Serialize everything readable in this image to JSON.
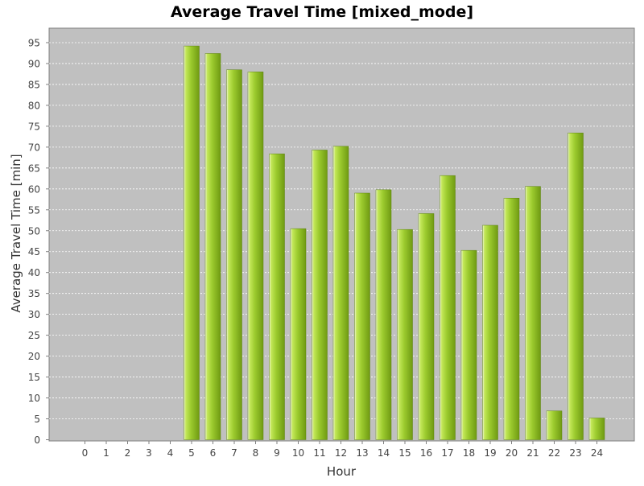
{
  "chart_data": {
    "type": "bar",
    "title": "Average Travel Time [mixed_mode]",
    "xlabel": "Hour",
    "ylabel": "Average Travel Time [min]",
    "categories": [
      "0",
      "1",
      "2",
      "3",
      "4",
      "5",
      "6",
      "7",
      "8",
      "9",
      "10",
      "11",
      "12",
      "13",
      "14",
      "15",
      "16",
      "17",
      "18",
      "19",
      "20",
      "21",
      "22",
      "23",
      "24"
    ],
    "values": [
      0,
      0,
      0,
      0,
      0,
      94.2,
      92.4,
      88.5,
      88.0,
      68.4,
      50.5,
      69.3,
      70.2,
      59.0,
      59.8,
      50.3,
      54.1,
      63.2,
      45.3,
      51.3,
      57.8,
      60.6,
      6.9,
      73.4,
      5.2
    ],
    "ylim": [
      0,
      98.5
    ],
    "yticks": [
      0,
      5,
      10,
      15,
      20,
      25,
      30,
      35,
      40,
      45,
      50,
      55,
      60,
      65,
      70,
      75,
      80,
      85,
      90,
      95
    ],
    "grid": true,
    "colors": {
      "plot_background": "#c0c0c0",
      "gridline": "#ffffff",
      "bar_dark": "#6f9a12",
      "bar_mid": "#9ccb2e",
      "bar_light": "#c4e85a"
    }
  }
}
